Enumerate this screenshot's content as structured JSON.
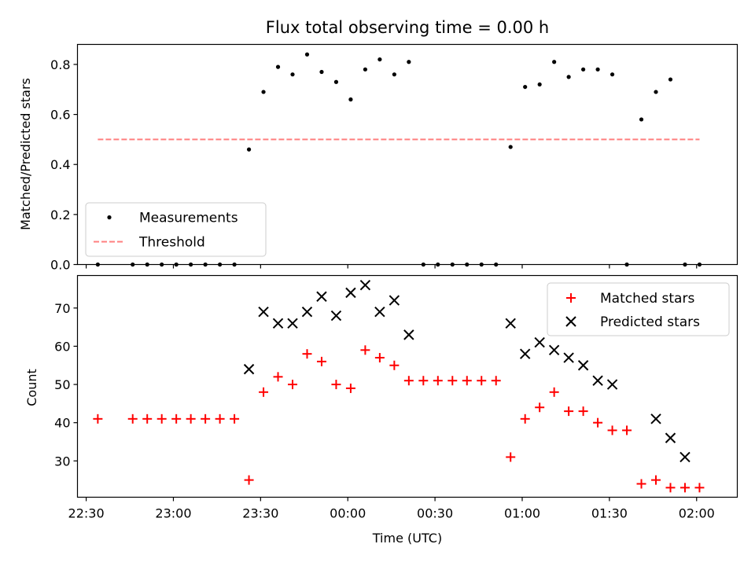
{
  "chart_data": [
    {
      "type": "scatter",
      "title": "Flux total observing time = 0.00 h",
      "ylabel": "Matched/Predicted stars",
      "xlim": [
        "22:27",
        "02:14"
      ],
      "ylim": [
        0,
        0.88
      ],
      "yticks": [
        "0.0",
        "0.2",
        "0.4",
        "0.6",
        "0.8"
      ],
      "legend_position": "lower-left",
      "series": [
        {
          "name": "Measurements",
          "marker": "dot",
          "color": "#000000",
          "x": [
            "22:34",
            "22:46",
            "22:51",
            "22:56",
            "23:01",
            "23:06",
            "23:11",
            "23:16",
            "23:21",
            "23:26",
            "23:31",
            "23:36",
            "23:41",
            "23:46",
            "23:51",
            "23:56",
            "24:01",
            "24:06",
            "24:11",
            "24:16",
            "24:21",
            "24:26",
            "24:31",
            "24:36",
            "24:41",
            "24:46",
            "24:51",
            "24:56",
            "25:01",
            "25:06",
            "25:11",
            "25:16",
            "25:21",
            "25:26",
            "25:31",
            "25:36",
            "25:41",
            "25:46",
            "25:51",
            "25:56",
            "26:01"
          ],
          "y": [
            0,
            0,
            0,
            0,
            0,
            0,
            0,
            0,
            0,
            0.46,
            0.69,
            0.79,
            0.76,
            0.84,
            0.77,
            0.73,
            0.66,
            0.78,
            0.82,
            0.76,
            0.81,
            0,
            0,
            0,
            0,
            0,
            0,
            0.47,
            0.71,
            0.72,
            0.81,
            0.75,
            0.78,
            0.78,
            0.76,
            0,
            0.58,
            0.69,
            0.74,
            0,
            0
          ]
        },
        {
          "name": "Threshold",
          "marker": "dashed-line",
          "color": "#ff7f7f",
          "x": [
            "22:34",
            "26:01"
          ],
          "y": [
            0.5,
            0.5
          ]
        }
      ]
    },
    {
      "type": "scatter",
      "xlabel": "Time (UTC)",
      "ylabel": "Count",
      "xlim": [
        "22:27",
        "02:14"
      ],
      "ylim": [
        20.5,
        78.5
      ],
      "yticks": [
        "30",
        "40",
        "50",
        "60",
        "70"
      ],
      "xticks": [
        "22:30",
        "23:00",
        "23:30",
        "00:00",
        "00:30",
        "01:00",
        "01:30",
        "02:00"
      ],
      "legend_position": "upper-right",
      "series": [
        {
          "name": "Matched stars",
          "marker": "plus",
          "color": "#ff0000",
          "x": [
            "22:34",
            "22:46",
            "22:51",
            "22:56",
            "23:01",
            "23:06",
            "23:11",
            "23:16",
            "23:21",
            "23:26",
            "23:31",
            "23:36",
            "23:41",
            "23:46",
            "23:51",
            "23:56",
            "24:01",
            "24:06",
            "24:11",
            "24:16",
            "24:21",
            "24:26",
            "24:31",
            "24:36",
            "24:41",
            "24:46",
            "24:51",
            "24:56",
            "25:01",
            "25:06",
            "25:11",
            "25:16",
            "25:21",
            "25:26",
            "25:31",
            "25:36",
            "25:41",
            "25:46",
            "25:51",
            "25:56",
            "26:01"
          ],
          "y": [
            41,
            41,
            41,
            41,
            41,
            41,
            41,
            41,
            41,
            25,
            48,
            52,
            50,
            58,
            56,
            50,
            49,
            59,
            57,
            55,
            51,
            51,
            51,
            51,
            51,
            51,
            51,
            31,
            41,
            44,
            48,
            43,
            43,
            40,
            38,
            38,
            24,
            25,
            23,
            23,
            23
          ]
        },
        {
          "name": "Predicted stars",
          "marker": "x",
          "color": "#000000",
          "x": [
            "23:26",
            "23:31",
            "23:36",
            "23:41",
            "23:46",
            "23:51",
            "23:56",
            "24:01",
            "24:06",
            "24:11",
            "24:16",
            "24:21",
            "24:56",
            "25:01",
            "25:06",
            "25:11",
            "25:16",
            "25:21",
            "25:26",
            "25:31",
            "25:46",
            "25:51",
            "25:56"
          ],
          "y": [
            54,
            69,
            66,
            66,
            69,
            73,
            68,
            74,
            76,
            69,
            72,
            63,
            66,
            58,
            61,
            59,
            57,
            55,
            51,
            50,
            41,
            36,
            31
          ]
        }
      ]
    }
  ]
}
